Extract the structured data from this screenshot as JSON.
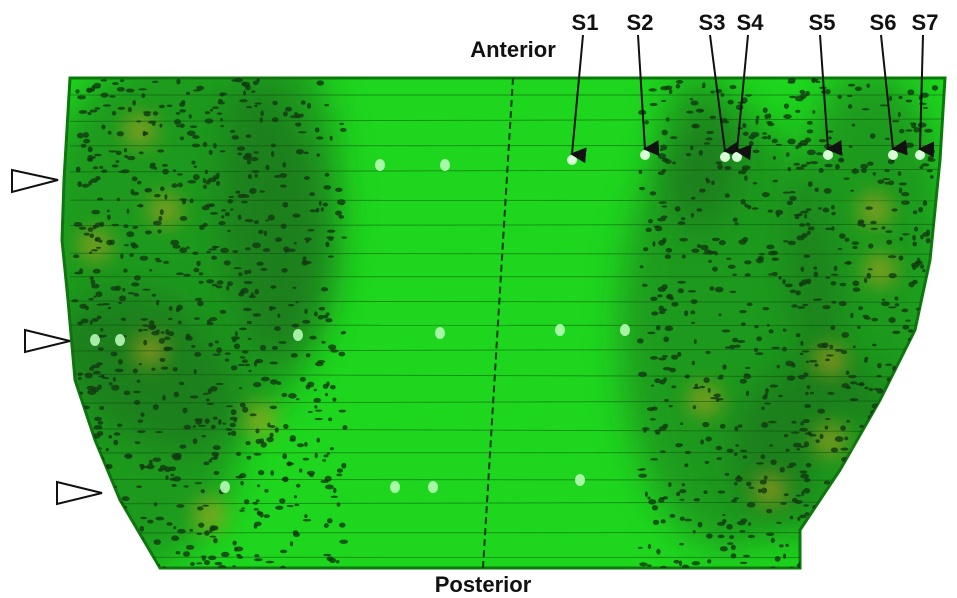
{
  "orientation": {
    "top": "Anterior",
    "bottom": "Posterior"
  },
  "markers": [
    {
      "label": "S1"
    },
    {
      "label": "S2"
    },
    {
      "label": "S3"
    },
    {
      "label": "S4"
    },
    {
      "label": "S5"
    },
    {
      "label": "S6"
    },
    {
      "label": "S7"
    }
  ]
}
